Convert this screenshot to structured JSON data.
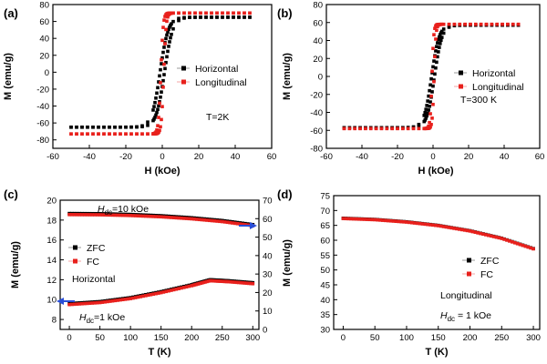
{
  "chart_data": [
    {
      "panel": "(a)",
      "type": "scatter",
      "xlabel": "H (kOe)",
      "ylabel": "M (emu/g)",
      "xlim": [
        -60,
        60
      ],
      "ylim": [
        -90,
        80
      ],
      "xticks": [
        -60,
        -40,
        -20,
        0,
        20,
        40,
        60
      ],
      "yticks": [
        -80,
        -60,
        -40,
        -20,
        0,
        20,
        40,
        60,
        80
      ],
      "annotations": [
        "T=2K"
      ],
      "legend": "center-right",
      "series": [
        {
          "name": "Horizontal",
          "color": "#000000",
          "kind": "loop",
          "hmin": -50,
          "hmax": 50,
          "ms_neg": -65,
          "ms_pos": 65,
          "hc": 1.2,
          "width": 4.5
        },
        {
          "name": "Longitudinal",
          "color": "#e8201c",
          "kind": "loop",
          "hmin": -50,
          "hmax": 50,
          "ms_neg": -73,
          "ms_pos": 70,
          "hc": 0.8,
          "width": 1.3
        }
      ]
    },
    {
      "panel": "(b)",
      "type": "scatter",
      "xlabel": "H (kOe)",
      "ylabel": "M (emu/g)",
      "xlim": [
        -60,
        60
      ],
      "ylim": [
        -80,
        80
      ],
      "xticks": [
        -60,
        -40,
        -20,
        0,
        20,
        40,
        60
      ],
      "yticks": [
        -80,
        -60,
        -40,
        -20,
        0,
        20,
        40,
        60,
        80
      ],
      "annotations": [
        "T=300 K"
      ],
      "legend": "center-right",
      "series": [
        {
          "name": "Horizontal",
          "color": "#000000",
          "kind": "loop",
          "hmin": -50,
          "hmax": 50,
          "ms_neg": -57,
          "ms_pos": 57,
          "hc": 0.8,
          "width": 4.2
        },
        {
          "name": "Longitudinal",
          "color": "#e8201c",
          "kind": "loop",
          "hmin": -50,
          "hmax": 50,
          "ms_neg": -58,
          "ms_pos": 58,
          "hc": 0.6,
          "width": 1.0
        }
      ]
    },
    {
      "panel": "(c)",
      "type": "scatter",
      "xlabel": "T (K)",
      "ylabel": "M (emu/g)",
      "xlim": [
        -15,
        310
      ],
      "ylim": [
        7,
        20
      ],
      "ylim_right": [
        0,
        70
      ],
      "xticks": [
        0,
        50,
        100,
        150,
        200,
        250,
        300
      ],
      "yticks": [
        8,
        10,
        12,
        14,
        16,
        18,
        20
      ],
      "yticks_right": [
        0,
        10,
        20,
        30,
        40,
        50,
        60,
        70
      ],
      "annotations": [
        "H_dc=10 kOe",
        "H_dc=1 kOe",
        "Horizontal"
      ],
      "legend": "center-left",
      "series": [
        {
          "name": "ZFC",
          "color": "#000000",
          "axis": "right",
          "x": [
            0,
            50,
            100,
            150,
            200,
            250,
            300
          ],
          "y": [
            62.8,
            62.7,
            62.3,
            61.6,
            60.5,
            59.0,
            56.8
          ]
        },
        {
          "name": "FC",
          "color": "#e8201c",
          "axis": "right",
          "x": [
            0,
            50,
            100,
            150,
            200,
            250,
            300
          ],
          "y": [
            62.2,
            62.1,
            61.7,
            61.0,
            59.9,
            58.4,
            56.2
          ]
        },
        {
          "name": "ZFC",
          "color": "#000000",
          "axis": "left",
          "x": [
            0,
            50,
            100,
            150,
            200,
            230,
            260,
            300
          ],
          "y": [
            9.6,
            9.8,
            10.2,
            10.8,
            11.5,
            12.0,
            11.9,
            11.7
          ]
        },
        {
          "name": "FC",
          "color": "#e8201c",
          "axis": "left",
          "x": [
            0,
            50,
            100,
            150,
            200,
            230,
            260,
            300
          ],
          "y": [
            9.5,
            9.7,
            10.1,
            10.7,
            11.4,
            11.9,
            11.8,
            11.6
          ]
        }
      ]
    },
    {
      "panel": "(d)",
      "type": "scatter",
      "xlabel": "T (K)",
      "ylabel": "M (emu/g)",
      "xlim": [
        -15,
        310
      ],
      "ylim": [
        30,
        75
      ],
      "xticks": [
        0,
        50,
        100,
        150,
        200,
        250,
        300
      ],
      "yticks": [
        30,
        35,
        40,
        45,
        50,
        55,
        60,
        65,
        70,
        75
      ],
      "annotations": [
        "Longitudinal",
        "H_dc = 1 kOe"
      ],
      "legend": "center-right",
      "series": [
        {
          "name": "ZFC",
          "color": "#000000",
          "x": [
            0,
            50,
            100,
            150,
            200,
            250,
            300
          ],
          "y": [
            67.4,
            67.0,
            66.2,
            65.0,
            63.2,
            60.7,
            57.2
          ]
        },
        {
          "name": "FC",
          "color": "#e8201c",
          "x": [
            0,
            50,
            100,
            150,
            200,
            250,
            300
          ],
          "y": [
            67.3,
            66.9,
            66.1,
            64.9,
            63.1,
            60.6,
            57.1
          ]
        }
      ]
    }
  ]
}
